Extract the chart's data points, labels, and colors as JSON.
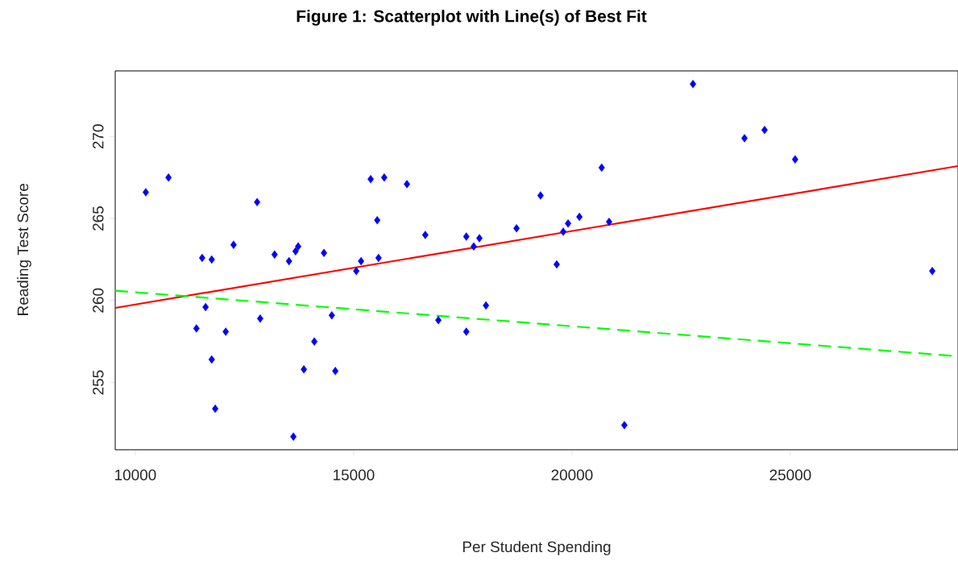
{
  "chart_data": {
    "type": "scatter",
    "title": "Figure 1: Scatterplot with Line(s) of Best Fit",
    "xlabel": "Per Student Spending",
    "ylabel": "Reading Test Score",
    "xlim": [
      9540,
      28840
    ],
    "ylim": [
      250.9,
      274.0
    ],
    "xticks": [
      10000,
      15000,
      20000,
      25000
    ],
    "yticks": [
      255,
      260,
      265,
      270
    ],
    "series": [
      {
        "type": "scatter",
        "color": "#0000ff",
        "marker": "diamond",
        "x": [
          10240,
          10760,
          12790,
          15390,
          15700,
          16220,
          15540,
          16640,
          11530,
          11750,
          12250,
          13190,
          13520,
          13670,
          13730,
          14320,
          15170,
          15060,
          15570,
          11610,
          11400,
          12070,
          12860,
          14500,
          14100,
          11750,
          13860,
          14580,
          11830,
          13620,
          17580,
          17750,
          17880,
          18730,
          19280,
          19650,
          19800,
          19910,
          20170,
          20680,
          20850,
          21200,
          22770,
          23950,
          24410,
          25110,
          28250,
          16940,
          17580,
          18030
        ],
        "values": [
          266.6,
          267.5,
          266.0,
          267.4,
          267.5,
          267.1,
          264.9,
          264.0,
          262.6,
          262.5,
          263.4,
          262.8,
          262.4,
          263.0,
          263.3,
          262.9,
          262.4,
          261.8,
          262.6,
          259.6,
          258.3,
          258.1,
          258.9,
          259.1,
          257.5,
          256.4,
          255.8,
          255.7,
          253.4,
          251.7,
          263.9,
          263.3,
          263.8,
          264.4,
          266.4,
          262.2,
          264.2,
          264.7,
          265.1,
          268.1,
          264.8,
          252.4,
          273.2,
          269.9,
          270.4,
          268.6,
          261.8,
          258.8,
          258.1,
          259.7
        ]
      },
      {
        "type": "line",
        "color": "#ff0000",
        "line_style": "solid",
        "marker": "none",
        "x": [
          9540,
          28840
        ],
        "values": [
          259.55,
          268.2
        ]
      },
      {
        "type": "line",
        "color": "#00ff00",
        "line_style": "dashed",
        "marker": "none",
        "x": [
          9540,
          28840
        ],
        "values": [
          260.6,
          256.6
        ]
      }
    ]
  }
}
